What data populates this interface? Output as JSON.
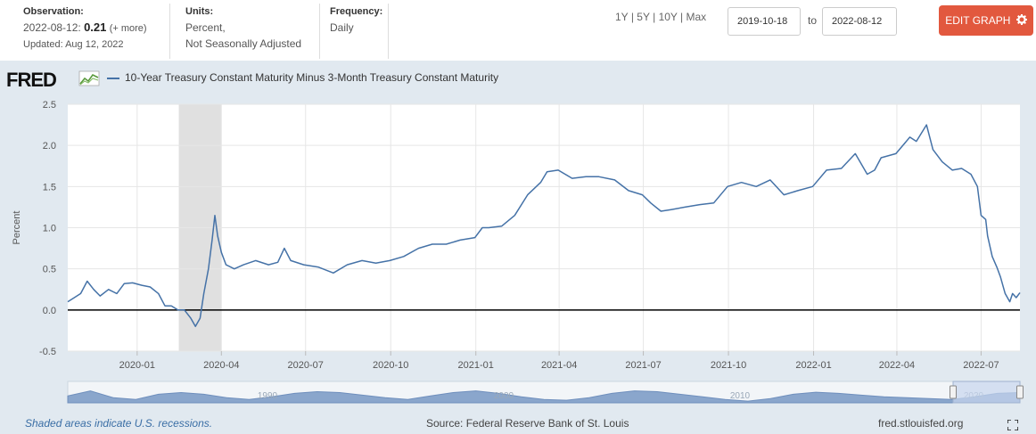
{
  "header": {
    "observation_label": "Observation:",
    "observation_date": "2022-08-12:",
    "observation_value": "0.21",
    "observation_more": "(+ more)",
    "updated": "Updated: Aug 12, 2022",
    "units_label": "Units:",
    "units_line1": "Percent,",
    "units_line2": "Not Seasonally Adjusted",
    "frequency_label": "Frequency:",
    "frequency_value": "Daily",
    "range_1y": "1Y",
    "range_5y": "5Y",
    "range_10y": "10Y",
    "range_max": "Max",
    "range_sep": "|",
    "date_from": "2019-10-18",
    "to_text": "to",
    "date_to": "2022-08-12",
    "edit_button": "EDIT GRAPH",
    "edit_icon": "gear-icon"
  },
  "logo": "FRED",
  "footer": {
    "recession_note": "Shaded areas indicate U.S. recessions.",
    "source": "Source: Federal Reserve Bank of St. Louis",
    "site": "fred.stlouisfed.org"
  },
  "colors": {
    "line": "#4572a7",
    "recession": "#e0e0e0",
    "edit_button": "#e2583e",
    "background": "#e1e9f0"
  },
  "chart_data": {
    "type": "line",
    "title": "",
    "ylabel": "Percent",
    "xlabel": "",
    "ylim": [
      -0.5,
      2.5
    ],
    "yticks": [
      "-0.5",
      "0.0",
      "0.5",
      "1.0",
      "1.5",
      "2.0",
      "2.5"
    ],
    "xrange": [
      "2019-10-18",
      "2022-08-12"
    ],
    "xticks": [
      {
        "date": "2020-01-01",
        "label": "2020-01"
      },
      {
        "date": "2020-04-01",
        "label": "2020-04"
      },
      {
        "date": "2020-07-01",
        "label": "2020-07"
      },
      {
        "date": "2020-10-01",
        "label": "2020-10"
      },
      {
        "date": "2021-01-01",
        "label": "2021-01"
      },
      {
        "date": "2021-04-01",
        "label": "2021-04"
      },
      {
        "date": "2021-07-01",
        "label": "2021-07"
      },
      {
        "date": "2021-10-01",
        "label": "2021-10"
      },
      {
        "date": "2022-01-01",
        "label": "2022-01"
      },
      {
        "date": "2022-04-01",
        "label": "2022-04"
      },
      {
        "date": "2022-07-01",
        "label": "2022-07"
      }
    ],
    "grid": true,
    "zero_line": true,
    "recessions": [
      {
        "start": "2020-02-15",
        "end": "2020-04-01"
      }
    ],
    "navigator_labels": [
      "1990",
      "2000",
      "2010",
      "2020"
    ],
    "series": [
      {
        "name": "10-Year Treasury Constant Maturity Minus 3-Month Treasury Constant Maturity",
        "points": [
          [
            "2019-10-18",
            0.1
          ],
          [
            "2019-10-25",
            0.15
          ],
          [
            "2019-11-01",
            0.2
          ],
          [
            "2019-11-08",
            0.35
          ],
          [
            "2019-11-15",
            0.25
          ],
          [
            "2019-11-22",
            0.17
          ],
          [
            "2019-12-01",
            0.25
          ],
          [
            "2019-12-10",
            0.2
          ],
          [
            "2019-12-18",
            0.32
          ],
          [
            "2019-12-27",
            0.33
          ],
          [
            "2020-01-06",
            0.3
          ],
          [
            "2020-01-15",
            0.28
          ],
          [
            "2020-01-24",
            0.2
          ],
          [
            "2020-01-31",
            0.05
          ],
          [
            "2020-02-07",
            0.05
          ],
          [
            "2020-02-14",
            0.0
          ],
          [
            "2020-02-21",
            0.0
          ],
          [
            "2020-02-28",
            -0.1
          ],
          [
            "2020-03-04",
            -0.2
          ],
          [
            "2020-03-09",
            -0.1
          ],
          [
            "2020-03-13",
            0.2
          ],
          [
            "2020-03-18",
            0.5
          ],
          [
            "2020-03-22",
            0.85
          ],
          [
            "2020-03-25",
            1.15
          ],
          [
            "2020-03-28",
            0.9
          ],
          [
            "2020-04-01",
            0.7
          ],
          [
            "2020-04-06",
            0.55
          ],
          [
            "2020-04-15",
            0.5
          ],
          [
            "2020-04-25",
            0.55
          ],
          [
            "2020-05-08",
            0.6
          ],
          [
            "2020-05-22",
            0.55
          ],
          [
            "2020-06-01",
            0.58
          ],
          [
            "2020-06-08",
            0.75
          ],
          [
            "2020-06-15",
            0.6
          ],
          [
            "2020-06-29",
            0.55
          ],
          [
            "2020-07-15",
            0.52
          ],
          [
            "2020-07-31",
            0.45
          ],
          [
            "2020-08-15",
            0.55
          ],
          [
            "2020-08-31",
            0.6
          ],
          [
            "2020-09-15",
            0.57
          ],
          [
            "2020-09-30",
            0.6
          ],
          [
            "2020-10-15",
            0.65
          ],
          [
            "2020-10-31",
            0.75
          ],
          [
            "2020-11-15",
            0.8
          ],
          [
            "2020-11-30",
            0.8
          ],
          [
            "2020-12-15",
            0.85
          ],
          [
            "2020-12-31",
            0.88
          ],
          [
            "2021-01-08",
            1.0
          ],
          [
            "2021-01-15",
            1.0
          ],
          [
            "2021-01-29",
            1.02
          ],
          [
            "2021-02-12",
            1.15
          ],
          [
            "2021-02-26",
            1.4
          ],
          [
            "2021-03-12",
            1.55
          ],
          [
            "2021-03-19",
            1.68
          ],
          [
            "2021-03-31",
            1.7
          ],
          [
            "2021-04-15",
            1.6
          ],
          [
            "2021-04-30",
            1.62
          ],
          [
            "2021-05-14",
            1.62
          ],
          [
            "2021-05-31",
            1.58
          ],
          [
            "2021-06-15",
            1.45
          ],
          [
            "2021-06-30",
            1.4
          ],
          [
            "2021-07-09",
            1.3
          ],
          [
            "2021-07-20",
            1.2
          ],
          [
            "2021-07-31",
            1.22
          ],
          [
            "2021-08-15",
            1.25
          ],
          [
            "2021-08-31",
            1.28
          ],
          [
            "2021-09-15",
            1.3
          ],
          [
            "2021-09-30",
            1.5
          ],
          [
            "2021-10-15",
            1.55
          ],
          [
            "2021-10-31",
            1.5
          ],
          [
            "2021-11-15",
            1.58
          ],
          [
            "2021-11-30",
            1.4
          ],
          [
            "2021-12-15",
            1.45
          ],
          [
            "2021-12-31",
            1.5
          ],
          [
            "2022-01-15",
            1.7
          ],
          [
            "2022-01-31",
            1.72
          ],
          [
            "2022-02-15",
            1.9
          ],
          [
            "2022-02-28",
            1.65
          ],
          [
            "2022-03-08",
            1.7
          ],
          [
            "2022-03-15",
            1.85
          ],
          [
            "2022-03-31",
            1.9
          ],
          [
            "2022-04-15",
            2.1
          ],
          [
            "2022-04-22",
            2.05
          ],
          [
            "2022-05-03",
            2.25
          ],
          [
            "2022-05-10",
            1.95
          ],
          [
            "2022-05-20",
            1.8
          ],
          [
            "2022-05-31",
            1.7
          ],
          [
            "2022-06-10",
            1.72
          ],
          [
            "2022-06-20",
            1.65
          ],
          [
            "2022-06-27",
            1.5
          ],
          [
            "2022-07-01",
            1.15
          ],
          [
            "2022-07-06",
            1.1
          ],
          [
            "2022-07-08",
            0.9
          ],
          [
            "2022-07-13",
            0.65
          ],
          [
            "2022-07-18",
            0.52
          ],
          [
            "2022-07-22",
            0.4
          ],
          [
            "2022-07-27",
            0.2
          ],
          [
            "2022-08-01",
            0.1
          ],
          [
            "2022-08-04",
            0.2
          ],
          [
            "2022-08-08",
            0.15
          ],
          [
            "2022-08-12",
            0.21
          ]
        ]
      }
    ]
  }
}
